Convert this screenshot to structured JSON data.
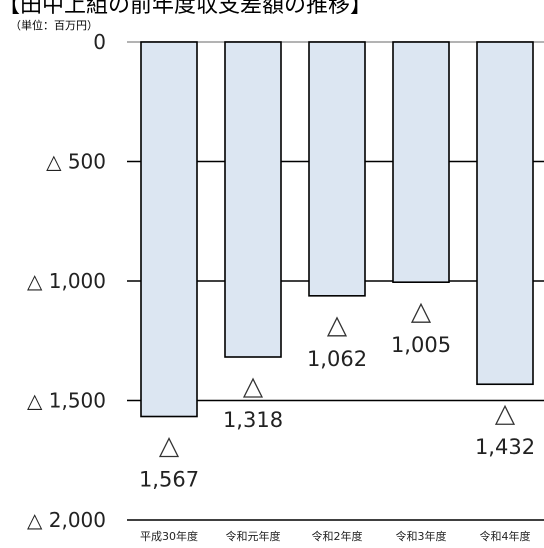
{
  "title": "【田中上組の前年度収支差額の推移】",
  "unit_label": "（単位：百万円）",
  "chart_data": {
    "type": "bar",
    "title": "【田中上組の前年度収支差額の推移】",
    "ylabel": "（単位：百万円）",
    "xlabel": "",
    "categories": [
      "平成30年度",
      "令和元年度",
      "令和2年度",
      "令和3年度",
      "令和4年度"
    ],
    "values": [
      -1567,
      -1318,
      -1062,
      -1005,
      -1432
    ],
    "value_labels": [
      "1,567",
      "1,318",
      "1,062",
      "1,005",
      "1,432"
    ],
    "negative_marker": "△",
    "ylim": [
      -2000,
      0
    ],
    "yticks": [
      0,
      -500,
      -1000,
      -1500,
      -2000
    ],
    "ytick_labels": [
      "0",
      "△ 500",
      "△ 1,000",
      "△ 1,500",
      "△ 2,000"
    ],
    "grid": true,
    "bar_color": "#dce6f2",
    "bar_edge_color": "#000000"
  }
}
